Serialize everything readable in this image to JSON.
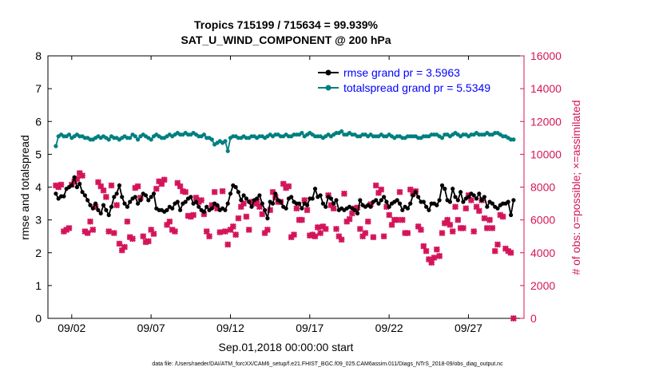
{
  "chart_data": {
    "type": "line",
    "title": "Tropics 715199 / 715634 = 99.939%",
    "subtitle": "SAT_U_WIND_COMPONENT @ 200 hPa",
    "xlabel": "Sep.01,2018 00:00:00 start",
    "ylabel": "rmse and totalspread",
    "ylabel_right": "# of obs: o=possible; ×=assimilated",
    "footer": "data file: /Users/raeder/DAI/ATM_forcXX/CAM6_setup/f.e21.FHIST_BGC.f09_025.CAM6assim.011/Diags_NTrS_2018-09/obs_diag_output.nc",
    "xlim": [
      0.5,
      30.5
    ],
    "ylim": [
      0,
      8
    ],
    "ylim_right": [
      0,
      16000
    ],
    "x_ticks": [
      {
        "x": 2,
        "label": "09/02"
      },
      {
        "x": 7,
        "label": "09/07"
      },
      {
        "x": 12,
        "label": "09/12"
      },
      {
        "x": 17,
        "label": "09/17"
      },
      {
        "x": 22,
        "label": "09/22"
      },
      {
        "x": 27,
        "label": "09/27"
      }
    ],
    "y_ticks": [
      "0",
      "1",
      "2",
      "3",
      "4",
      "5",
      "6",
      "7",
      "8"
    ],
    "y_ticks_right": [
      "0",
      "2000",
      "4000",
      "6000",
      "8000",
      "10000",
      "12000",
      "14000",
      "16000"
    ],
    "grid": false,
    "legend_position": "top-right",
    "colors": {
      "rmse": "#000000",
      "spread": "#007f7f",
      "obs": "#d4145a",
      "legend_text": "#0000ff",
      "right_axis": "#d4145a"
    },
    "series": [
      {
        "name": "rmse grand pr = 3.5963",
        "key": "rmse",
        "values": [
          3.8,
          3.65,
          3.72,
          3.72,
          3.95,
          4.0,
          4.05,
          4.3,
          4.0,
          4.1,
          3.85,
          3.75,
          3.6,
          3.45,
          3.35,
          3.5,
          3.3,
          3.2,
          3.45,
          3.3,
          3.15,
          3.4,
          3.7,
          3.8,
          4.05,
          3.7,
          3.5,
          3.4,
          3.55,
          3.65,
          3.7,
          3.5,
          3.6,
          3.8,
          3.75,
          3.6,
          3.7,
          3.8,
          3.35,
          3.3,
          3.3,
          3.25,
          3.3,
          3.4,
          3.35,
          3.5,
          3.55,
          3.3,
          3.5,
          3.55,
          3.65,
          3.7,
          3.5,
          3.55,
          3.4,
          3.3,
          3.25,
          3.4,
          3.3,
          3.35,
          3.5,
          3.45,
          3.3,
          3.35,
          3.3,
          3.5,
          3.8,
          4.05,
          4.0,
          3.85,
          3.6,
          3.75,
          3.65,
          3.55,
          3.4,
          3.6,
          3.65,
          3.75,
          3.5,
          3.3,
          3.05,
          3.55,
          3.5,
          3.8,
          3.6,
          3.55,
          3.4,
          3.35,
          3.65,
          3.7,
          3.55,
          3.5,
          3.5,
          3.35,
          3.5,
          3.45,
          3.65,
          3.65,
          3.95,
          3.7,
          3.75,
          3.5,
          3.4,
          3.7,
          3.65,
          3.5,
          3.6,
          3.3,
          3.35,
          3.3,
          3.35,
          3.4,
          3.35,
          3.3,
          3.2,
          3.6,
          3.45,
          3.4,
          3.45,
          3.4,
          3.55,
          3.6,
          3.5,
          3.6,
          3.7,
          3.55,
          3.4,
          3.5,
          3.55,
          3.6,
          3.5,
          3.3,
          3.4,
          3.35,
          3.5,
          3.75,
          3.85,
          3.7,
          3.55,
          3.55,
          3.4,
          3.3,
          3.5,
          3.5,
          3.45,
          3.6,
          4.05,
          3.95,
          3.6,
          3.55,
          3.95,
          3.7,
          3.6,
          3.85,
          3.55,
          3.65,
          3.7,
          3.8,
          3.75,
          3.65,
          3.8,
          3.6,
          3.7,
          3.4,
          3.55,
          3.5,
          3.4,
          3.35,
          3.45,
          3.5,
          3.5,
          3.55,
          3.15,
          3.6
        ]
      },
      {
        "name": "totalspread grand pr = 5.5349",
        "key": "spread",
        "values": [
          5.25,
          5.55,
          5.6,
          5.55,
          5.55,
          5.6,
          5.5,
          5.55,
          5.6,
          5.55,
          5.55,
          5.5,
          5.5,
          5.45,
          5.45,
          5.5,
          5.55,
          5.5,
          5.55,
          5.5,
          5.45,
          5.55,
          5.5,
          5.5,
          5.45,
          5.5,
          5.55,
          5.5,
          5.5,
          5.6,
          5.55,
          5.45,
          5.55,
          5.6,
          5.55,
          5.5,
          5.45,
          5.55,
          5.6,
          5.55,
          5.5,
          5.5,
          5.55,
          5.6,
          5.55,
          5.6,
          5.65,
          5.6,
          5.6,
          5.65,
          5.6,
          5.6,
          5.65,
          5.6,
          5.55,
          5.55,
          5.6,
          5.5,
          5.5,
          5.45,
          5.3,
          5.35,
          5.4,
          5.35,
          5.4,
          5.1,
          5.5,
          5.55,
          5.55,
          5.5,
          5.5,
          5.55,
          5.5,
          5.5,
          5.55,
          5.55,
          5.5,
          5.55,
          5.55,
          5.5,
          5.55,
          5.6,
          5.55,
          5.6,
          5.6,
          5.55,
          5.55,
          5.6,
          5.55,
          5.55,
          5.6,
          5.6,
          5.6,
          5.65,
          5.55,
          5.6,
          5.65,
          5.6,
          5.55,
          5.55,
          5.55,
          5.5,
          5.55,
          5.6,
          5.55,
          5.6,
          5.65,
          5.65,
          5.7,
          5.6,
          5.6,
          5.65,
          5.6,
          5.6,
          5.55,
          5.55,
          5.6,
          5.6,
          5.55,
          5.6,
          5.55,
          5.55,
          5.55,
          5.6,
          5.55,
          5.55,
          5.6,
          5.55,
          5.5,
          5.55,
          5.55,
          5.5,
          5.5,
          5.55,
          5.55,
          5.55,
          5.55,
          5.5,
          5.5,
          5.55,
          5.55,
          5.55,
          5.6,
          5.6,
          5.6,
          5.55,
          5.5,
          5.6,
          5.6,
          5.55,
          5.6,
          5.65,
          5.6,
          5.55,
          5.6,
          5.6,
          5.55,
          5.6,
          5.6,
          5.65,
          5.6,
          5.6,
          5.6,
          5.65,
          5.6,
          5.6,
          5.65,
          5.65,
          5.6,
          5.55,
          5.55,
          5.5,
          5.45,
          5.45
        ]
      },
      {
        "name": "obs assimilated",
        "key": "obs",
        "axis": "right",
        "values": [
          8100,
          8000,
          8150,
          5300,
          5400,
          5500,
          8150,
          8350,
          8500,
          8850,
          8700,
          5300,
          5200,
          5900,
          5400,
          6800,
          8300,
          8050,
          7800,
          7400,
          5300,
          8100,
          5200,
          6900,
          4550,
          4150,
          4350,
          5900,
          4950,
          4850,
          7950,
          8050,
          7350,
          5000,
          4650,
          4700,
          5400,
          5150,
          7900,
          8350,
          8200,
          8450,
          5700,
          5900,
          5400,
          5300,
          8250,
          8050,
          7750,
          7700,
          6250,
          6200,
          6300,
          7350,
          7100,
          7200,
          6350,
          5300,
          5000,
          6900,
          7700,
          6700,
          5250,
          7750,
          5300,
          4500,
          5400,
          5600,
          5100,
          6100,
          6800,
          7000,
          6200,
          5400,
          7100,
          7000,
          7100,
          6800,
          6350,
          5200,
          5400,
          6600,
          7700,
          7400,
          7100,
          7100,
          8200,
          7950,
          8050,
          4950,
          5100,
          6700,
          6000,
          6000,
          7200,
          6600,
          5050,
          5100,
          5000,
          5550,
          5200,
          5600,
          5450,
          7500,
          6900,
          6700,
          5450,
          5000,
          4800,
          7600,
          5900,
          6050,
          6400,
          6700,
          6750,
          5450,
          5000,
          5200,
          5900,
          6950,
          4950,
          8100,
          7650,
          7850,
          5000,
          6800,
          6300,
          5700,
          6000,
          6000,
          7700,
          6000,
          5200,
          5200,
          7850,
          7600,
          7750,
          5600,
          5400,
          4400,
          4100,
          3600,
          3400,
          3700,
          4200,
          3800,
          5200,
          5800,
          6000,
          5700,
          5300,
          6800,
          6000,
          5500,
          5500,
          6700,
          7500,
          7200,
          5300,
          6800,
          6550,
          7200,
          6100,
          5500,
          6000,
          5500,
          4100,
          4500,
          6300,
          6200,
          4250,
          4100,
          4000,
          0
        ]
      }
    ]
  }
}
